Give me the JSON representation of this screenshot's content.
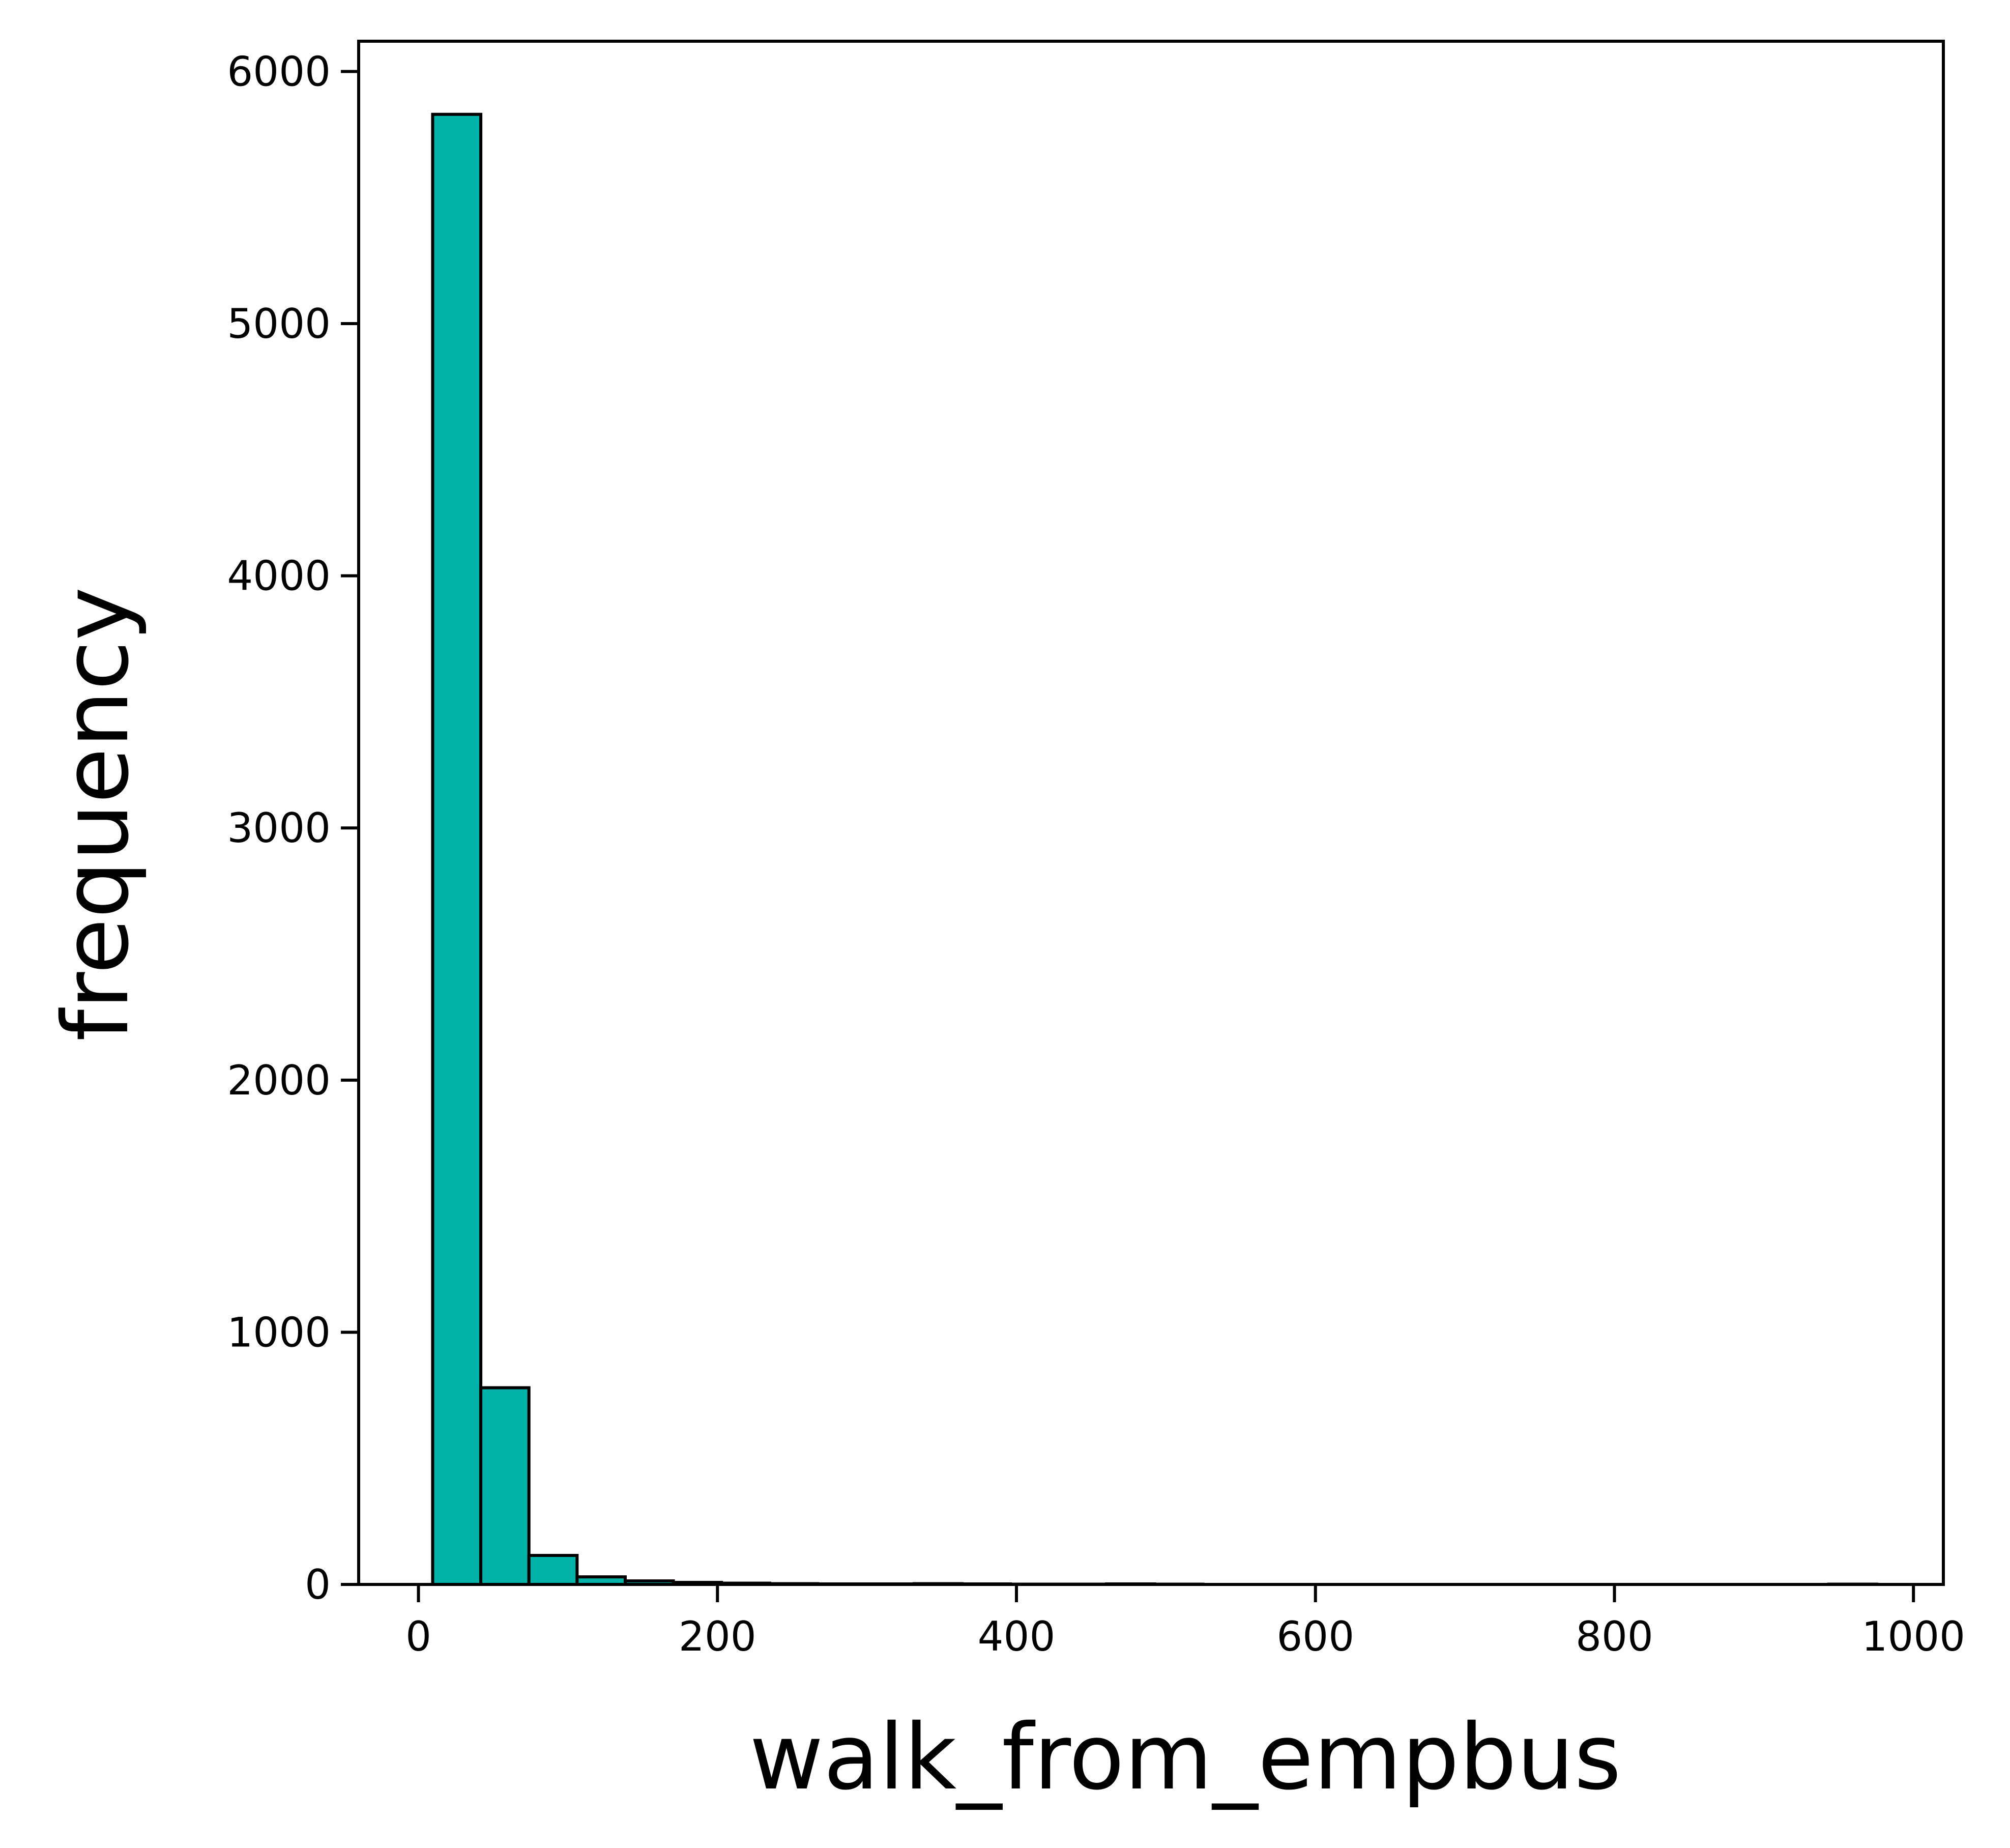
{
  "chart_data": {
    "type": "bar",
    "subtype": "histogram",
    "title": "",
    "xlabel": "walk_from_empbus",
    "ylabel": "frequency",
    "xlim": [
      -40,
      1020
    ],
    "ylim": [
      0,
      6120
    ],
    "xticks": [
      0,
      200,
      400,
      600,
      800,
      1000
    ],
    "yticks": [
      0,
      1000,
      2000,
      3000,
      4000,
      5000,
      6000
    ],
    "grid": false,
    "legend": "none",
    "bar_color": "#00b2a7",
    "edge_color": "#000000",
    "bins": [
      {
        "x0": 9.5,
        "x1": 41.7,
        "count": 5830
      },
      {
        "x0": 41.7,
        "x1": 73.9,
        "count": 780
      },
      {
        "x0": 73.9,
        "x1": 106.1,
        "count": 115
      },
      {
        "x0": 106.1,
        "x1": 138.3,
        "count": 30
      },
      {
        "x0": 138.3,
        "x1": 170.5,
        "count": 14
      },
      {
        "x0": 170.5,
        "x1": 202.7,
        "count": 8
      },
      {
        "x0": 202.7,
        "x1": 234.9,
        "count": 5
      },
      {
        "x0": 234.9,
        "x1": 267.1,
        "count": 3
      },
      {
        "x0": 267.1,
        "x1": 299.3,
        "count": 2
      },
      {
        "x0": 299.3,
        "x1": 331.5,
        "count": 2
      },
      {
        "x0": 331.5,
        "x1": 363.7,
        "count": 3
      },
      {
        "x0": 363.7,
        "x1": 395.9,
        "count": 2
      },
      {
        "x0": 395.9,
        "x1": 428.1,
        "count": 1
      },
      {
        "x0": 428.1,
        "x1": 460.3,
        "count": 1
      },
      {
        "x0": 460.3,
        "x1": 492.5,
        "count": 2
      },
      {
        "x0": 492.5,
        "x1": 524.7,
        "count": 1
      },
      {
        "x0": 524.7,
        "x1": 556.9,
        "count": 0
      },
      {
        "x0": 556.9,
        "x1": 589.1,
        "count": 0
      },
      {
        "x0": 589.1,
        "x1": 621.3,
        "count": 0
      },
      {
        "x0": 621.3,
        "x1": 653.5,
        "count": 0
      },
      {
        "x0": 653.5,
        "x1": 685.7,
        "count": 0
      },
      {
        "x0": 685.7,
        "x1": 717.9,
        "count": 0
      },
      {
        "x0": 717.9,
        "x1": 750.1,
        "count": 0
      },
      {
        "x0": 750.1,
        "x1": 782.3,
        "count": 0
      },
      {
        "x0": 782.3,
        "x1": 814.5,
        "count": 0
      },
      {
        "x0": 814.5,
        "x1": 846.7,
        "count": 0
      },
      {
        "x0": 846.7,
        "x1": 878.9,
        "count": 0
      },
      {
        "x0": 878.9,
        "x1": 911.1,
        "count": 0
      },
      {
        "x0": 911.1,
        "x1": 943.3,
        "count": 0
      },
      {
        "x0": 943.3,
        "x1": 975.5,
        "count": 1
      }
    ]
  }
}
